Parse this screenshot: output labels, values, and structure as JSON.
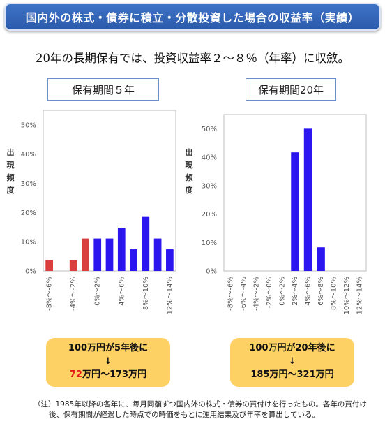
{
  "header": {
    "title": "国内外の株式・債券に積立・分散投資した場合の収益率（実績）"
  },
  "subtitle": "20年の長期保有では、投資収益率２～８％（年率）に収斂。",
  "colors": {
    "banner": "#2f63b8",
    "bar_blue": "#2b16f0",
    "bar_red": "#d9403d",
    "result_box": "#fdd164",
    "highlight": "#e21b1b"
  },
  "chart_data": [
    {
      "type": "bar",
      "title": "保有期間５年",
      "ylabel": "出現頻度",
      "ylim": [
        0,
        55
      ],
      "yticks": [
        "0%",
        "10%",
        "20%",
        "30%",
        "40%",
        "50%"
      ],
      "categories": [
        "-8%～-6%",
        "-6%～-4%",
        "-4%～-2%",
        "-2%～0%",
        "0%～2%",
        "2%～4%",
        "4%～6%",
        "6%～8%",
        "8%～10%",
        "10%～12%",
        "12%～14%"
      ],
      "xtick_labels": [
        "-8%～-6%",
        "",
        "-4%～-2%",
        "",
        "0%～2%",
        "",
        "4%～6%",
        "",
        "8%～10%",
        "",
        "12%～14%"
      ],
      "values": [
        3.7,
        0,
        3.7,
        11.1,
        11.1,
        11.1,
        14.8,
        7.4,
        18.5,
        11.1,
        7.4
      ],
      "colors": [
        "#d9403d",
        "#d9403d",
        "#d9403d",
        "#d9403d",
        "#2b16f0",
        "#2b16f0",
        "#2b16f0",
        "#2b16f0",
        "#2b16f0",
        "#2b16f0",
        "#2b16f0"
      ]
    },
    {
      "type": "bar",
      "title": "保有期間20年",
      "ylabel": "出現頻度",
      "ylim": [
        0,
        55
      ],
      "yticks": [
        "0%",
        "10%",
        "20%",
        "30%",
        "40%",
        "50%"
      ],
      "categories": [
        "-8%～-6%",
        "-6%～-4%",
        "-4%～-2%",
        "-2%～0%",
        "0%～2%",
        "2%～4%",
        "4%～6%",
        "6%～8%",
        "8%～10%",
        "10%～12%",
        "12%～14%"
      ],
      "xtick_labels": [
        "-8%～-6%",
        "-6%～-4%",
        "-4%～-2%",
        "-2%～0%",
        "0%～2%",
        "2%～4%",
        "4%～6%",
        "6%～8%",
        "8%～10%",
        "10%～12%",
        "12%～14%"
      ],
      "values": [
        0,
        0,
        0,
        0,
        0,
        41.7,
        50.0,
        8.3,
        0,
        0,
        0
      ],
      "colors": [
        "#2b16f0",
        "#2b16f0",
        "#2b16f0",
        "#2b16f0",
        "#2b16f0",
        "#2b16f0",
        "#2b16f0",
        "#2b16f0",
        "#2b16f0",
        "#2b16f0",
        "#2b16f0"
      ]
    }
  ],
  "results": {
    "left": {
      "line1": "100万円が5年後に",
      "arrow": "↓",
      "highlight": "72",
      "rest": "万円～173万円"
    },
    "right": {
      "line1": "100万円が20年後に",
      "arrow": "↓",
      "line3": "185万円～321万円"
    }
  },
  "note": {
    "line1": "（注）1985年以降の各年に、毎月同額ずつ国内外の株式・債券の買付けを行ったもの。各年の買付け",
    "line2": "後、保有期間が経過した時点での時価をもとに運用結果及び年率を算出している。"
  }
}
